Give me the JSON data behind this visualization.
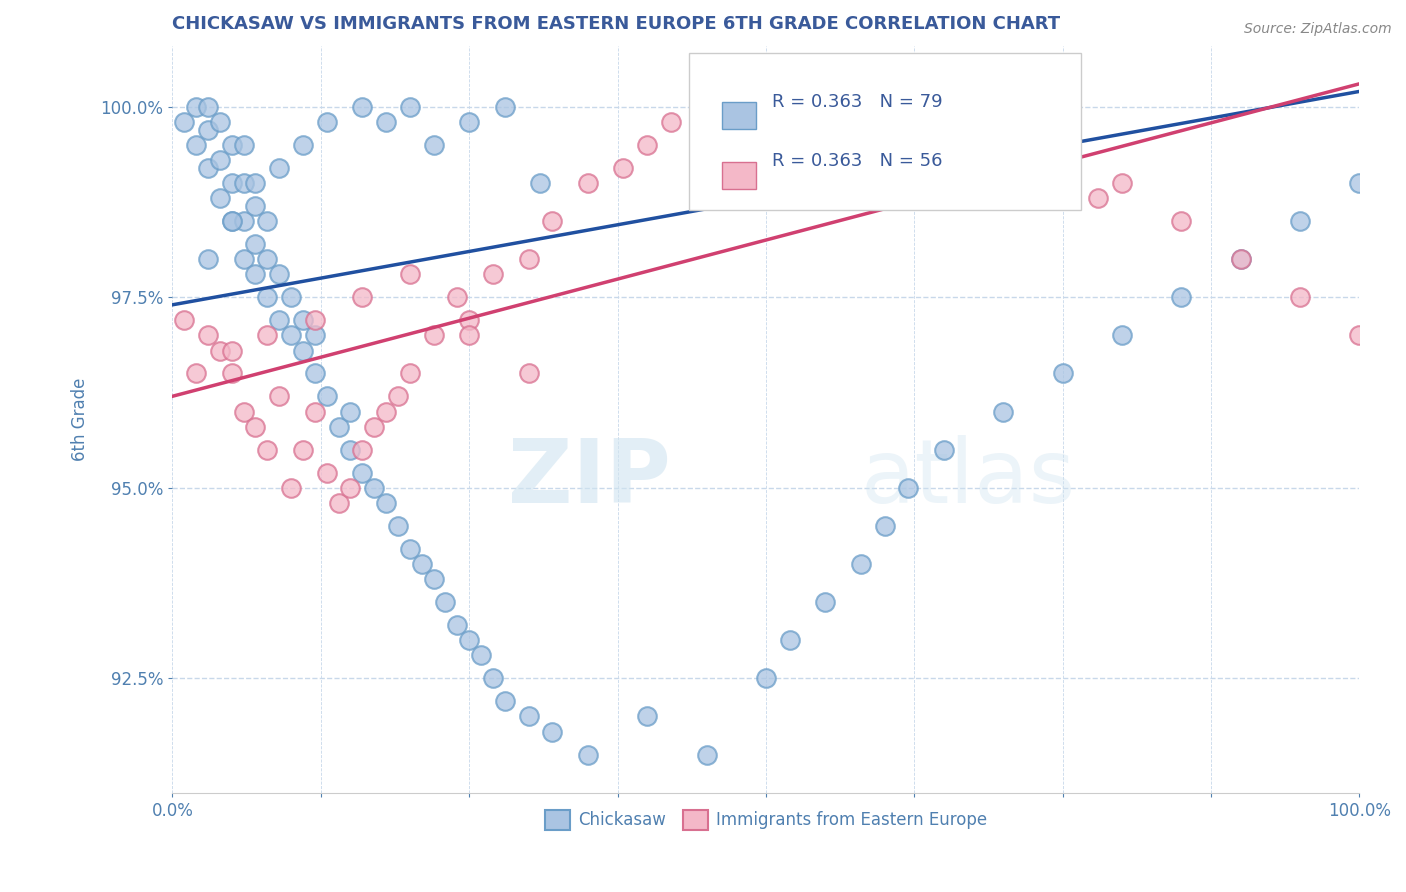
{
  "title": "CHICKASAW VS IMMIGRANTS FROM EASTERN EUROPE 6TH GRADE CORRELATION CHART",
  "source": "Source: ZipAtlas.com",
  "ylabel": "6th Grade",
  "x_min": 0.0,
  "x_max": 100.0,
  "y_min": 91.0,
  "y_max": 100.8,
  "x_ticks": [
    0.0,
    12.5,
    25.0,
    37.5,
    50.0,
    62.5,
    75.0,
    87.5,
    100.0
  ],
  "x_tick_labels": [
    "0.0%",
    "",
    "",
    "",
    "",
    "",
    "",
    "",
    "100.0%"
  ],
  "y_ticks": [
    92.5,
    95.0,
    97.5,
    100.0
  ],
  "y_tick_labels": [
    "92.5%",
    "95.0%",
    "97.5%",
    "100.0%"
  ],
  "blue_color": "#aac4e2",
  "blue_edge": "#6a9dc8",
  "blue_line": "#2050a0",
  "pink_color": "#f4b8c8",
  "pink_edge": "#d87090",
  "pink_line": "#d04070",
  "legend_R1": "R = 0.363",
  "legend_N1": "N = 79",
  "legend_R2": "R = 0.363",
  "legend_N2": "N = 56",
  "label1": "Chickasaw",
  "label2": "Immigrants from Eastern Europe",
  "watermark_zip": "ZIP",
  "watermark_atlas": "atlas",
  "background": "#ffffff",
  "grid_color": "#c8d8ea",
  "title_color": "#3a5a9a",
  "axis_color": "#5080b0",
  "blue_scatter_x": [
    1,
    2,
    2,
    3,
    3,
    3,
    4,
    4,
    4,
    5,
    5,
    5,
    6,
    6,
    6,
    6,
    7,
    7,
    7,
    8,
    8,
    8,
    9,
    9,
    10,
    10,
    11,
    11,
    12,
    12,
    13,
    14,
    15,
    15,
    16,
    17,
    18,
    19,
    20,
    21,
    22,
    23,
    24,
    25,
    26,
    27,
    28,
    30,
    32,
    35,
    40,
    45,
    50,
    52,
    55,
    58,
    60,
    62,
    65,
    70,
    75,
    80,
    85,
    90,
    95,
    100,
    3,
    5,
    7,
    9,
    11,
    13,
    16,
    18,
    20,
    22,
    25,
    28,
    31
  ],
  "blue_scatter_y": [
    99.8,
    99.5,
    100.0,
    99.2,
    99.7,
    100.0,
    98.8,
    99.3,
    99.8,
    98.5,
    99.0,
    99.5,
    98.0,
    98.5,
    99.0,
    99.5,
    97.8,
    98.2,
    98.7,
    97.5,
    98.0,
    98.5,
    97.2,
    97.8,
    97.0,
    97.5,
    96.8,
    97.2,
    96.5,
    97.0,
    96.2,
    95.8,
    95.5,
    96.0,
    95.2,
    95.0,
    94.8,
    94.5,
    94.2,
    94.0,
    93.8,
    93.5,
    93.2,
    93.0,
    92.8,
    92.5,
    92.2,
    92.0,
    91.8,
    91.5,
    92.0,
    91.5,
    92.5,
    93.0,
    93.5,
    94.0,
    94.5,
    95.0,
    95.5,
    96.0,
    96.5,
    97.0,
    97.5,
    98.0,
    98.5,
    99.0,
    98.0,
    98.5,
    99.0,
    99.2,
    99.5,
    99.8,
    100.0,
    99.8,
    100.0,
    99.5,
    99.8,
    100.0,
    99.0
  ],
  "pink_scatter_x": [
    1,
    2,
    3,
    4,
    5,
    6,
    7,
    8,
    9,
    10,
    11,
    12,
    13,
    14,
    15,
    16,
    17,
    18,
    19,
    20,
    22,
    24,
    25,
    27,
    30,
    32,
    35,
    38,
    40,
    42,
    45,
    48,
    50,
    52,
    55,
    58,
    60,
    62,
    65,
    68,
    70,
    72,
    75,
    78,
    80,
    85,
    90,
    95,
    100,
    5,
    8,
    12,
    16,
    20,
    25,
    30
  ],
  "pink_scatter_y": [
    97.2,
    96.5,
    97.0,
    96.8,
    96.5,
    96.0,
    95.8,
    95.5,
    96.2,
    95.0,
    95.5,
    96.0,
    95.2,
    94.8,
    95.0,
    95.5,
    95.8,
    96.0,
    96.2,
    96.5,
    97.0,
    97.5,
    97.2,
    97.8,
    98.0,
    98.5,
    99.0,
    99.2,
    99.5,
    99.8,
    100.0,
    99.5,
    100.0,
    99.8,
    100.0,
    99.5,
    100.0,
    99.2,
    99.8,
    99.5,
    100.0,
    99.2,
    99.5,
    98.8,
    99.0,
    98.5,
    98.0,
    97.5,
    97.0,
    96.8,
    97.0,
    97.2,
    97.5,
    97.8,
    97.0,
    96.5
  ],
  "blue_line_start_y": 97.4,
  "blue_line_end_y": 100.2,
  "pink_line_start_y": 96.2,
  "pink_line_end_y": 100.3
}
